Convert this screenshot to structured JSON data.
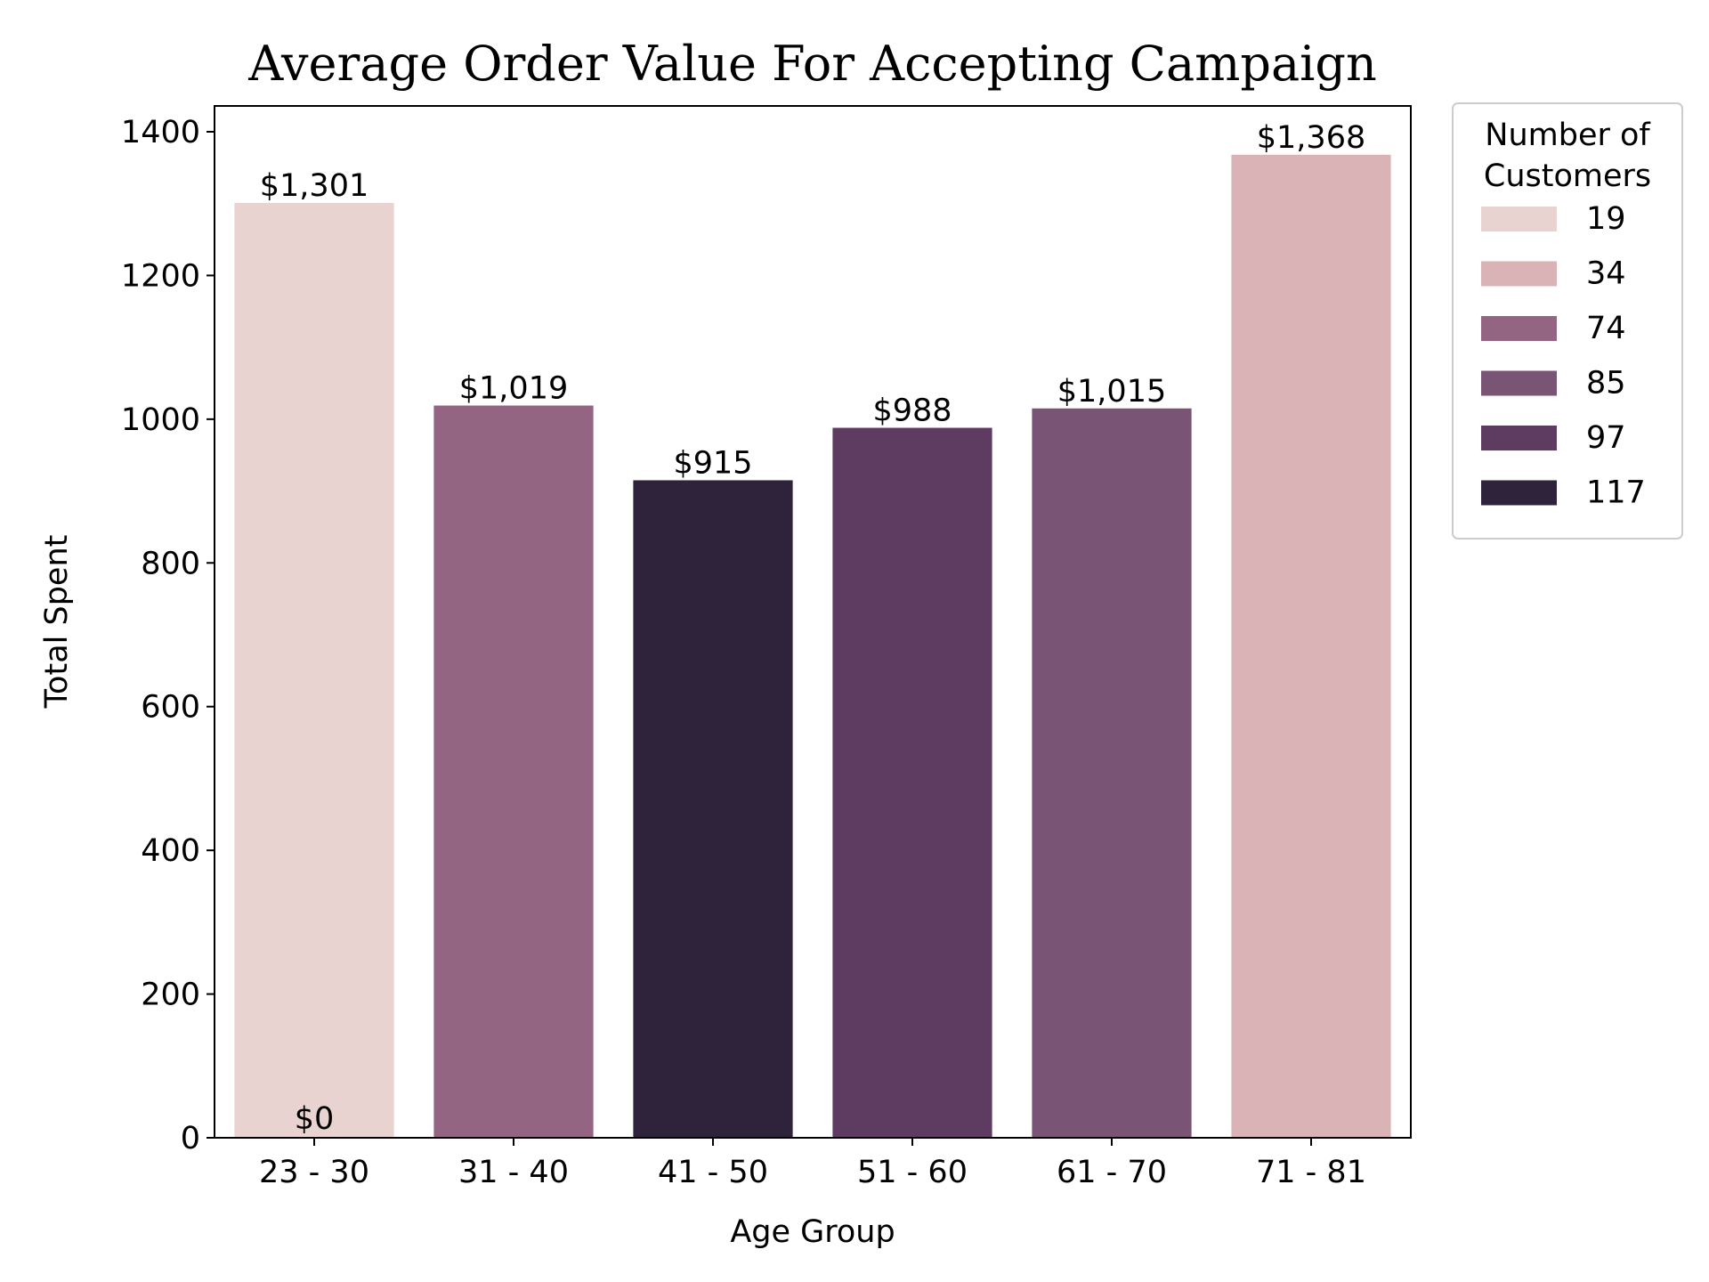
{
  "chart_data": {
    "type": "bar",
    "title": "Average Order Value For Accepting Campaign",
    "xlabel": "Age Group",
    "ylabel": "Total Spent",
    "ylim": [
      0,
      1400
    ],
    "yticks": [
      "0",
      "200",
      "400",
      "600",
      "800",
      "1000",
      "1200",
      "1400"
    ],
    "categories": [
      "23 - 30",
      "31 - 40",
      "41 - 50",
      "51 - 60",
      "61 - 70",
      "71 - 81"
    ],
    "values": [
      1301,
      1019,
      915,
      988,
      1015,
      1368
    ],
    "data_labels": [
      "$1,301",
      "$1,019",
      "$915",
      "$988",
      "$1,015",
      "$1,368"
    ],
    "hue_values": [
      19,
      74,
      117,
      97,
      85,
      34
    ],
    "extra_annotation": "$0",
    "grid": false,
    "legend": {
      "title_lines": [
        "Number of",
        "Customers"
      ],
      "placement": "outside-top-right",
      "entries": [
        {
          "label": "19",
          "color": "#e8d3d0"
        },
        {
          "label": "34",
          "color": "#d9b3b6"
        },
        {
          "label": "74",
          "color": "#936583"
        },
        {
          "label": "85",
          "color": "#7a5474"
        },
        {
          "label": "97",
          "color": "#5e3b61"
        },
        {
          "label": "117",
          "color": "#2e233a"
        }
      ]
    }
  }
}
